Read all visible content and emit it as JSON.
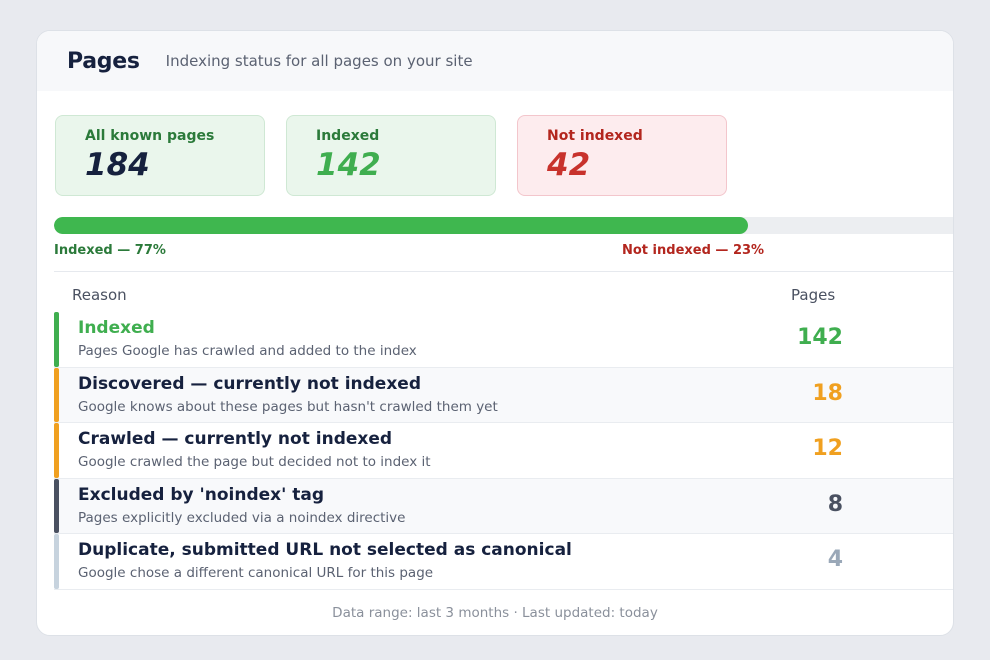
{
  "header": {
    "title": "Pages",
    "subtitle": "Indexing status for all pages on your site"
  },
  "stats": [
    {
      "label": "All known pages",
      "value": "184"
    },
    {
      "label": "Indexed",
      "value": "142"
    },
    {
      "label": "Not indexed",
      "value": "42"
    }
  ],
  "progress": {
    "indexed_fraction": 0.77,
    "indexed_label": "Indexed — 77%",
    "not_indexed_label": "Not indexed — 23%"
  },
  "table": {
    "col_reason": "Reason",
    "col_pages": "Pages",
    "rows": [
      {
        "title": "Indexed",
        "description": "Pages Google has crawled and added to the index",
        "count": "142",
        "color": "#3fae4f"
      },
      {
        "title": "Discovered — currently not indexed",
        "description": "Google knows about these pages but hasn't crawled them yet",
        "count": "18",
        "color": "#f0a020"
      },
      {
        "title": "Crawled — currently not indexed",
        "description": "Google crawled the page but decided not to index it",
        "count": "12",
        "color": "#f0a020"
      },
      {
        "title": "Excluded by 'noindex' tag",
        "description": "Pages explicitly excluded via a noindex directive",
        "count": "8",
        "color": "#4a5161"
      },
      {
        "title": "Duplicate, submitted URL not selected as canonical",
        "description": "Google chose a different canonical URL for this page",
        "count": "4",
        "color": "#9aa8b8"
      }
    ]
  },
  "footer": "Data range: last 3 months · Last updated: today",
  "colors": {
    "indexed_green": "#3fb74f",
    "not_indexed_red": "#c8322c",
    "warning_amber": "#f0a020",
    "neutral_dark": "#4a5161",
    "neutral_light": "#c7d3de"
  }
}
